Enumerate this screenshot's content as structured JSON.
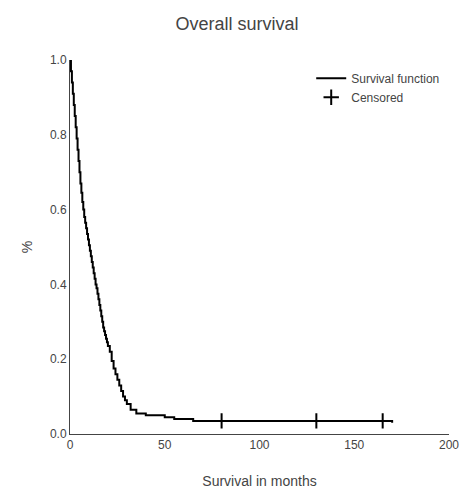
{
  "chart_data": {
    "type": "step",
    "title": "Overall survival",
    "xlabel": "Survival in months",
    "ylabel": "%",
    "xlim": [
      0,
      200
    ],
    "ylim": [
      0,
      1.0
    ],
    "xticks": [
      0,
      50,
      100,
      150,
      200
    ],
    "yticks": [
      {
        "value": 0.0,
        "label": "0.0"
      },
      0.2,
      0.4,
      0.6,
      0.8,
      {
        "value": 1.0,
        "label": "1.0"
      }
    ],
    "grid": false,
    "legend": "upper right",
    "series": [
      {
        "name": "Survival function",
        "type": "step",
        "color": "#000000",
        "line_style": "solid",
        "x": [
          0,
          0.5,
          1,
          1.5,
          2,
          2.5,
          3,
          3.5,
          4,
          4.5,
          5,
          5.5,
          6,
          6.5,
          7,
          7.5,
          8,
          8.5,
          9,
          9.5,
          10,
          10.5,
          11,
          11.5,
          12,
          12.5,
          13,
          13.5,
          14,
          14.5,
          15,
          15.5,
          16,
          16.5,
          17,
          17.5,
          18,
          18.5,
          19,
          19.5,
          20,
          21,
          22,
          23,
          24,
          25,
          26,
          27,
          28,
          29,
          30,
          32,
          35,
          40,
          45,
          50,
          55,
          60,
          65,
          70,
          75,
          80,
          90,
          100,
          120,
          150,
          170
        ],
        "values": [
          1.0,
          0.97,
          0.94,
          0.91,
          0.88,
          0.85,
          0.82,
          0.79,
          0.76,
          0.73,
          0.7,
          0.67,
          0.645,
          0.62,
          0.6,
          0.58,
          0.565,
          0.55,
          0.535,
          0.52,
          0.505,
          0.49,
          0.475,
          0.46,
          0.445,
          0.43,
          0.415,
          0.4,
          0.39,
          0.375,
          0.36,
          0.345,
          0.33,
          0.315,
          0.3,
          0.285,
          0.275,
          0.265,
          0.255,
          0.245,
          0.235,
          0.22,
          0.195,
          0.175,
          0.16,
          0.145,
          0.13,
          0.115,
          0.1,
          0.09,
          0.08,
          0.065,
          0.055,
          0.05,
          0.05,
          0.045,
          0.04,
          0.04,
          0.035,
          0.035,
          0.035,
          0.035,
          0.035,
          0.035,
          0.035,
          0.035,
          0.03
        ]
      },
      {
        "name": "Censored",
        "type": "scatter",
        "color": "#000000",
        "marker": "plus",
        "x": [
          80,
          130,
          165
        ],
        "values": [
          0.035,
          0.035,
          0.035
        ]
      }
    ]
  }
}
